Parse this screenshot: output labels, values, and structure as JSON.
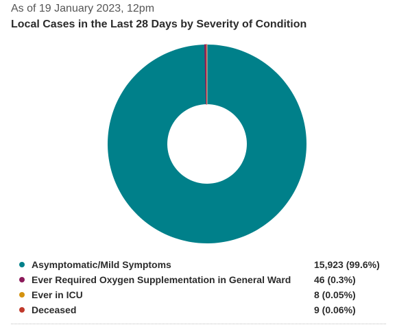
{
  "header": {
    "as_of": "As of 19 January 2023, 12pm",
    "title": "Local Cases in the Last 28 Days by Severity of Condition"
  },
  "chart_data": {
    "type": "pie",
    "donut": true,
    "title": "Local Cases in the Last 28 Days by Severity of Condition",
    "legend_position": "bottom",
    "slices": [
      {
        "name": "Asymptomatic/Mild Symptoms",
        "value": 15923,
        "display": "15,923 (99.6%)",
        "color": "#00808a"
      },
      {
        "name": "Ever Required Oxygen Supplementation in General Ward",
        "value": 46,
        "display": "46 (0.3%)",
        "color": "#8b1a5a"
      },
      {
        "name": "Ever in ICU",
        "value": 8,
        "display": "8 (0.05%)",
        "color": "#d4920f"
      },
      {
        "name": "Deceased",
        "value": 9,
        "display": "9 (0.06%)",
        "color": "#c0392b"
      }
    ]
  }
}
